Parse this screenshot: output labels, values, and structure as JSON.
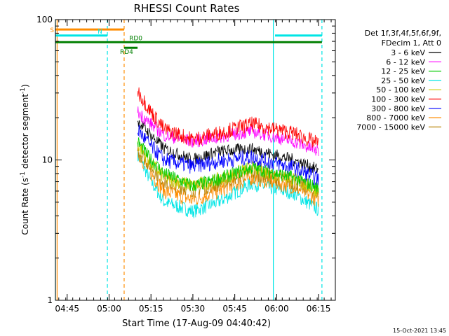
{
  "chart_data": {
    "type": "line",
    "title": "RHESSI Count Rates",
    "xlabel": "Start Time (17-Aug-09 04:40:42)",
    "ylabel_main": "Count Rate (s",
    "ylabel_sup1": "-1",
    "ylabel_mid": " detector segment",
    "ylabel_sup2": "-1",
    "ylabel_end": ")",
    "yscale": "log",
    "ylim": [
      1,
      100
    ],
    "y_ticks": [
      {
        "value": 1,
        "label": "1"
      },
      {
        "value": 10,
        "label": "10"
      },
      {
        "value": 100,
        "label": "100"
      }
    ],
    "x_ticks": [
      {
        "value": 4.75,
        "label": "04:45"
      },
      {
        "value": 5.0,
        "label": "05:00"
      },
      {
        "value": 5.25,
        "label": "05:15"
      },
      {
        "value": 5.5,
        "label": "05:30"
      },
      {
        "value": 5.75,
        "label": "05:45"
      },
      {
        "value": 6.0,
        "label": "06:00"
      },
      {
        "value": 6.25,
        "label": "06:15"
      }
    ],
    "legend_header": [
      "Det 1f,3f,4f,5f,6f,9f,",
      "FDecim 1, Att 0"
    ],
    "series": [
      {
        "name": "3 - 6 keV",
        "color": "#000000",
        "points": [
          [
            5.17,
            19
          ],
          [
            5.25,
            15
          ],
          [
            5.33,
            12
          ],
          [
            5.5,
            10
          ],
          [
            5.65,
            11.5
          ],
          [
            5.85,
            12
          ],
          [
            6.1,
            10
          ],
          [
            6.25,
            8.5
          ]
        ]
      },
      {
        "name": "6 - 12 keV",
        "color": "#ff00ff",
        "points": [
          [
            5.17,
            22
          ],
          [
            5.25,
            18
          ],
          [
            5.33,
            15
          ],
          [
            5.5,
            13.5
          ],
          [
            5.65,
            14.5
          ],
          [
            5.85,
            16
          ],
          [
            6.1,
            13.5
          ],
          [
            6.25,
            11.5
          ]
        ]
      },
      {
        "name": "12 - 25 keV",
        "color": "#00cc00",
        "points": [
          [
            5.17,
            13.5
          ],
          [
            5.25,
            10
          ],
          [
            5.33,
            8
          ],
          [
            5.5,
            6.5
          ],
          [
            5.65,
            7.3
          ],
          [
            5.85,
            8.8
          ],
          [
            6.1,
            7.5
          ],
          [
            6.25,
            6.3
          ]
        ]
      },
      {
        "name": "25 - 50 keV",
        "color": "#00e5e5",
        "points": [
          [
            5.17,
            11
          ],
          [
            5.25,
            7
          ],
          [
            5.33,
            5
          ],
          [
            5.5,
            4.3
          ],
          [
            5.65,
            5
          ],
          [
            5.85,
            6.8
          ],
          [
            6.1,
            5.8
          ],
          [
            6.25,
            4.4
          ]
        ]
      },
      {
        "name": "50 - 100 keV",
        "color": "#cccc00",
        "points": [
          [
            5.17,
            13
          ],
          [
            5.25,
            9.5
          ],
          [
            5.33,
            7.5
          ],
          [
            5.5,
            6.5
          ],
          [
            5.65,
            7.2
          ],
          [
            5.85,
            8.8
          ],
          [
            6.1,
            7.3
          ],
          [
            6.25,
            6
          ]
        ]
      },
      {
        "name": "100 - 300 keV",
        "color": "#ff0000",
        "points": [
          [
            5.17,
            31
          ],
          [
            5.25,
            22
          ],
          [
            5.33,
            16.5
          ],
          [
            5.5,
            14
          ],
          [
            5.65,
            15.5
          ],
          [
            5.85,
            18
          ],
          [
            6.1,
            15.5
          ],
          [
            6.25,
            13
          ]
        ]
      },
      {
        "name": "300 - 800 keV",
        "color": "#0000ff",
        "points": [
          [
            5.17,
            16.5
          ],
          [
            5.25,
            12.5
          ],
          [
            5.33,
            10
          ],
          [
            5.5,
            9
          ],
          [
            5.65,
            9.8
          ],
          [
            5.85,
            10.5
          ],
          [
            6.1,
            8.8
          ],
          [
            6.25,
            7.3
          ]
        ]
      },
      {
        "name": "800 - 7000 keV",
        "color": "#ff8c00",
        "points": [
          [
            5.17,
            11.5
          ],
          [
            5.25,
            8
          ],
          [
            5.33,
            6
          ],
          [
            5.5,
            5.2
          ],
          [
            5.65,
            6
          ],
          [
            5.85,
            7.5
          ],
          [
            6.1,
            6.5
          ],
          [
            6.25,
            5.2
          ]
        ]
      },
      {
        "name": "7000 - 15000 keV",
        "color": "#b8860b",
        "points": [
          [
            5.17,
            12
          ],
          [
            5.25,
            9
          ],
          [
            5.33,
            7
          ],
          [
            5.5,
            6.2
          ],
          [
            5.65,
            6.8
          ],
          [
            5.85,
            8.2
          ],
          [
            6.1,
            7
          ],
          [
            6.25,
            5.8
          ]
        ]
      }
    ],
    "state_bars": [
      {
        "label": "S",
        "color": "#ff8c00",
        "y": 85,
        "segments": [
          [
            4.68,
            5.09
          ]
        ]
      },
      {
        "label": "N",
        "color": "#00e5e5",
        "y": 77,
        "segments": [
          [
            4.68,
            4.99
          ],
          [
            5.99,
            6.27
          ]
        ]
      },
      {
        "label": "RD0",
        "color": "#007f00",
        "y": 69,
        "segments": [
          [
            4.68,
            6.27
          ]
        ]
      },
      {
        "label": "RD4",
        "color": "#007f00",
        "y": 63,
        "segments": [
          [
            5.09,
            5.17
          ]
        ]
      }
    ],
    "vertical_lines": [
      {
        "x": 4.69,
        "color": "#ff8c00",
        "style": "solid"
      },
      {
        "x": 4.68,
        "color": "#00e5e5",
        "style": "solid"
      },
      {
        "x": 4.99,
        "color": "#00e5e5",
        "style": "dashed"
      },
      {
        "x": 5.09,
        "color": "#ff8c00",
        "style": "dashed"
      },
      {
        "x": 5.98,
        "color": "#00e5e5",
        "style": "solid"
      },
      {
        "x": 6.27,
        "color": "#00e5e5",
        "style": "dashed"
      }
    ],
    "footer_stamp": "15-Oct-2021 13:45"
  }
}
